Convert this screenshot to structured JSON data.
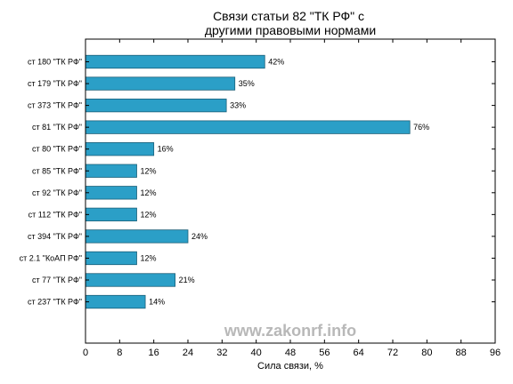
{
  "chart_data": {
    "type": "bar",
    "orientation": "horizontal",
    "title": "Связи статьи 82 \"ТК РФ\" с\nдругими правовыми нормами",
    "xlabel": "Сила связи, %",
    "ylabel": "",
    "xlim": [
      0,
      96
    ],
    "x_ticks": [
      0,
      8,
      16,
      24,
      32,
      40,
      48,
      56,
      64,
      72,
      80,
      88,
      96
    ],
    "categories": [
      "ст 180 \"ТК РФ\"",
      "ст 179 \"ТК РФ\"",
      "ст 373 \"ТК РФ\"",
      "ст 81 \"ТК РФ\"",
      "ст 80 \"ТК РФ\"",
      "ст 85 \"ТК РФ\"",
      "ст 92 \"ТК РФ\"",
      "ст 112 \"ТК РФ\"",
      "ст 394 \"ТК РФ\"",
      "ст 2.1 \"КоАП РФ\"",
      "ст 77 \"ТК РФ\"",
      "ст 237 \"ТК РФ\""
    ],
    "values": [
      42,
      35,
      33,
      76,
      16,
      12,
      12,
      12,
      24,
      12,
      21,
      14
    ],
    "value_labels": [
      "42%",
      "35%",
      "33%",
      "76%",
      "16%",
      "12%",
      "12%",
      "12%",
      "24%",
      "12%",
      "21%",
      "14%"
    ],
    "bar_color": "#2b9fc7",
    "bar_edge_color": "#1a5f78",
    "grid": false,
    "legend": "none",
    "watermark": "www.zakonrf.info"
  }
}
